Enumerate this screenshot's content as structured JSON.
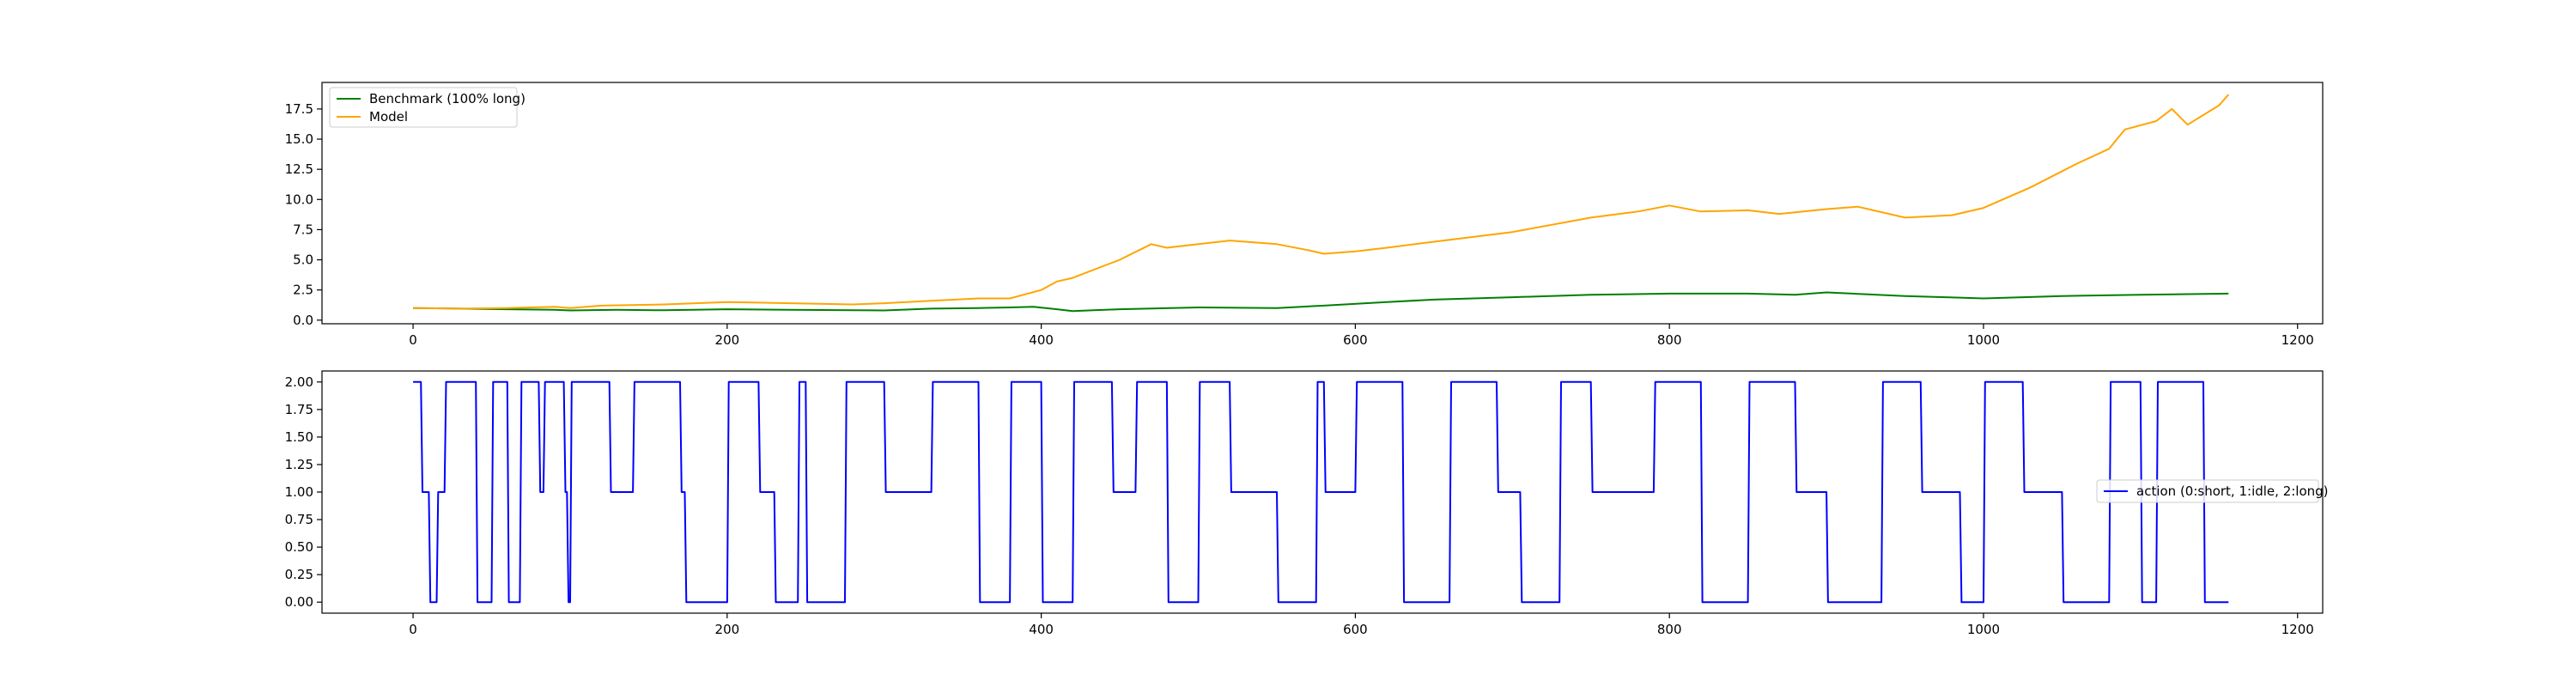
{
  "chart_data": [
    {
      "type": "line",
      "xlim": [
        -58,
        1216
      ],
      "ylim": [
        -0.3,
        19.7
      ],
      "x_ticks": [
        0,
        200,
        400,
        600,
        800,
        1000,
        1200
      ],
      "y_ticks": [
        0.0,
        2.5,
        5.0,
        7.5,
        10.0,
        12.5,
        15.0,
        17.5
      ],
      "x_tick_labels": [
        "0",
        "200",
        "400",
        "600",
        "800",
        "1000",
        "1200"
      ],
      "y_tick_labels": [
        "0.0",
        "2.5",
        "5.0",
        "7.5",
        "10.0",
        "12.5",
        "15.0",
        "17.5"
      ],
      "grid": false,
      "legend_position": "upper-left",
      "series": [
        {
          "name": "Benchmark (100% long)",
          "color": "#008000",
          "x": [
            0,
            30,
            60,
            90,
            100,
            130,
            160,
            200,
            240,
            280,
            300,
            330,
            360,
            380,
            395,
            410,
            420,
            450,
            500,
            550,
            580,
            620,
            650,
            700,
            750,
            800,
            850,
            880,
            900,
            950,
            1000,
            1050,
            1100,
            1156
          ],
          "values": [
            1.0,
            0.95,
            0.9,
            0.85,
            0.8,
            0.85,
            0.82,
            0.9,
            0.85,
            0.82,
            0.8,
            0.95,
            1.0,
            1.05,
            1.1,
            0.9,
            0.75,
            0.9,
            1.05,
            1.0,
            1.2,
            1.5,
            1.7,
            1.9,
            2.1,
            2.2,
            2.2,
            2.1,
            2.3,
            2.0,
            1.8,
            2.0,
            2.1,
            2.2
          ]
        },
        {
          "name": "Model",
          "color": "#ffa500",
          "x": [
            0,
            30,
            60,
            90,
            100,
            120,
            160,
            200,
            240,
            280,
            300,
            330,
            360,
            380,
            400,
            410,
            420,
            450,
            470,
            480,
            500,
            520,
            550,
            570,
            580,
            600,
            620,
            650,
            700,
            750,
            780,
            800,
            820,
            850,
            870,
            900,
            920,
            950,
            980,
            1000,
            1030,
            1060,
            1080,
            1090,
            1110,
            1120,
            1130,
            1150,
            1156
          ],
          "values": [
            1.0,
            0.95,
            1.0,
            1.1,
            1.0,
            1.2,
            1.3,
            1.5,
            1.4,
            1.3,
            1.4,
            1.6,
            1.8,
            1.8,
            2.5,
            3.2,
            3.5,
            5.0,
            6.3,
            6.0,
            6.3,
            6.6,
            6.3,
            5.8,
            5.5,
            5.7,
            6.0,
            6.5,
            7.3,
            8.5,
            9.0,
            9.5,
            9.0,
            9.1,
            8.8,
            9.2,
            9.4,
            8.5,
            8.7,
            9.3,
            11.0,
            13.0,
            14.2,
            15.8,
            16.5,
            17.5,
            16.2,
            17.8,
            18.7
          ]
        }
      ]
    },
    {
      "type": "line",
      "xlim": [
        -58,
        1216
      ],
      "ylim": [
        -0.1,
        2.1
      ],
      "x_ticks": [
        0,
        200,
        400,
        600,
        800,
        1000,
        1200
      ],
      "y_ticks": [
        0.0,
        0.25,
        0.5,
        0.75,
        1.0,
        1.25,
        1.5,
        1.75,
        2.0
      ],
      "x_tick_labels": [
        "0",
        "200",
        "400",
        "600",
        "800",
        "1000",
        "1200"
      ],
      "y_tick_labels": [
        "0.00",
        "0.25",
        "0.50",
        "0.75",
        "1.00",
        "1.25",
        "1.50",
        "1.75",
        "2.00"
      ],
      "grid": false,
      "legend_position": "center-right",
      "series": [
        {
          "name": "action (0:short, 1:idle, 2:long)",
          "color": "#0000ff",
          "x": [
            0,
            5,
            6,
            10,
            11,
            15,
            16,
            20,
            21,
            40,
            41,
            50,
            51,
            60,
            61,
            68,
            69,
            80,
            81,
            83,
            84,
            96,
            97,
            98,
            99,
            100,
            101,
            125,
            126,
            140,
            141,
            170,
            171,
            173,
            174,
            200,
            201,
            220,
            221,
            230,
            231,
            245,
            246,
            250,
            251,
            275,
            276,
            300,
            301,
            330,
            331,
            360,
            361,
            380,
            381,
            400,
            401,
            420,
            421,
            445,
            446,
            460,
            461,
            480,
            481,
            500,
            501,
            520,
            521,
            550,
            551,
            575,
            576,
            580,
            581,
            600,
            601,
            630,
            631,
            660,
            661,
            690,
            691,
            705,
            706,
            730,
            731,
            750,
            751,
            790,
            791,
            820,
            821,
            850,
            851,
            880,
            881,
            900,
            901,
            935,
            936,
            960,
            961,
            985,
            986,
            1000,
            1001,
            1025,
            1026,
            1050,
            1051,
            1080,
            1081,
            1100,
            1101,
            1110,
            1111,
            1140,
            1141,
            1156
          ],
          "values": [
            2,
            2,
            1,
            1,
            0,
            0,
            1,
            1,
            2,
            2,
            0,
            0,
            2,
            2,
            0,
            0,
            2,
            2,
            1,
            1,
            2,
            2,
            1,
            1,
            0,
            0,
            2,
            2,
            1,
            1,
            2,
            2,
            1,
            1,
            0,
            0,
            2,
            2,
            1,
            1,
            0,
            0,
            2,
            2,
            0,
            0,
            2,
            2,
            1,
            1,
            2,
            2,
            0,
            0,
            2,
            2,
            0,
            0,
            2,
            2,
            1,
            1,
            2,
            2,
            0,
            0,
            2,
            2,
            1,
            1,
            0,
            0,
            2,
            2,
            1,
            1,
            2,
            2,
            0,
            0,
            2,
            2,
            1,
            1,
            0,
            0,
            2,
            2,
            1,
            1,
            2,
            2,
            0,
            0,
            2,
            2,
            1,
            1,
            0,
            0,
            2,
            2,
            1,
            1,
            0,
            0,
            2,
            2,
            1,
            1,
            0,
            0,
            2,
            2,
            0,
            0,
            2,
            2,
            0,
            0
          ]
        }
      ]
    }
  ]
}
